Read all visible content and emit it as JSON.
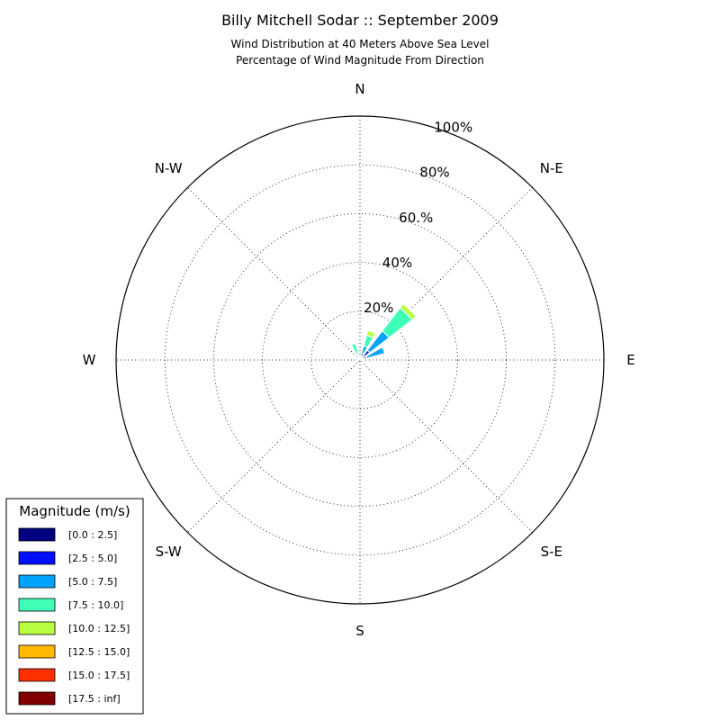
{
  "chart_data": {
    "type": "windrose",
    "title": "Billy Mitchell Sodar :: September 2009",
    "subtitle": [
      "Wind Distribution at 40 Meters Above Sea Level",
      "Percentage of Wind Magnitude From Direction"
    ],
    "directions": [
      {
        "label": "N",
        "angle": 0
      },
      {
        "label": "N-E",
        "angle": 45
      },
      {
        "label": "E",
        "angle": 90
      },
      {
        "label": "S-E",
        "angle": 135
      },
      {
        "label": "S",
        "angle": 180
      },
      {
        "label": "S-W",
        "angle": 225
      },
      {
        "label": "W",
        "angle": 270
      },
      {
        "label": "N-W",
        "angle": 315
      }
    ],
    "rings": [
      {
        "value": 20,
        "label": "20%"
      },
      {
        "value": 40,
        "label": "40%"
      },
      {
        "value": 60,
        "label": "60.%"
      },
      {
        "value": 80,
        "label": "80%"
      },
      {
        "value": 100,
        "label": "100%"
      }
    ],
    "rmax": 100,
    "grid": true,
    "legend": {
      "title": "Magnitude (m/s)",
      "placement": "bottom-left",
      "bins": [
        {
          "label": "[0.0 : 2.5]",
          "color": "#000080"
        },
        {
          "label": "[2.5 : 5.0]",
          "color": "#0010ff"
        },
        {
          "label": "[5.0 : 7.5]",
          "color": "#00a4ff"
        },
        {
          "label": "[7.5 : 10.0]",
          "color": "#40ffb7"
        },
        {
          "label": "[10.0 : 12.5]",
          "color": "#b7ff40"
        },
        {
          "label": "[12.5 : 15.0]",
          "color": "#ffb900"
        },
        {
          "label": "[15.0 : 17.5]",
          "color": "#ff3000"
        },
        {
          "label": "[17.5 : inf]",
          "color": "#800000"
        }
      ]
    },
    "sectors": [
      {
        "direction": 22.5,
        "cumulative": [
          1,
          3,
          6,
          10.5,
          12.5
        ]
      },
      {
        "direction": 45,
        "cumulative": [
          1.5,
          5,
          15,
          27,
          29
        ]
      },
      {
        "direction": 67.5,
        "cumulative": [
          0.5,
          3,
          10.5
        ]
      },
      {
        "direction": 337.5,
        "cumulative": [
          0.5,
          1.5,
          2.5,
          7
        ]
      },
      {
        "direction": 270,
        "cumulative": [
          0.5,
          1.5,
          3
        ]
      },
      {
        "direction": 315,
        "cumulative": [
          0.5,
          1.5,
          2.5
        ]
      },
      {
        "direction": 0,
        "cumulative": [
          0.5,
          1.5
        ]
      },
      {
        "direction": 112.5,
        "cumulative": [
          0.5,
          1
        ]
      }
    ]
  }
}
